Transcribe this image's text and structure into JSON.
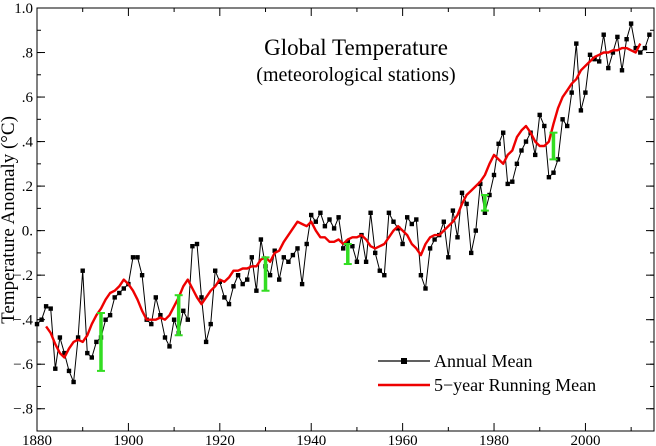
{
  "chart_data": {
    "type": "line",
    "title": "Global Temperature",
    "subtitle": "(meteorological stations)",
    "xlabel": "",
    "ylabel": "Temperature Anomaly (°C)",
    "xlim": [
      1880,
      2015
    ],
    "ylim": [
      -0.9,
      1.0
    ],
    "x_ticks": [
      1880,
      1900,
      1920,
      1940,
      1960,
      1980,
      2000
    ],
    "x_tick_labels": [
      "1880",
      "1900",
      "1920",
      "1940",
      "1960",
      "1980",
      "2000"
    ],
    "y_ticks": [
      1.0,
      0.8,
      0.6,
      0.4,
      0.2,
      0.0,
      -0.2,
      -0.4,
      -0.6,
      -0.8
    ],
    "y_tick_labels": [
      "1.0",
      ".8",
      ".6",
      ".4",
      ".2",
      "0.",
      "−.2",
      "−.4",
      "−.6",
      "−.8"
    ],
    "legend": [
      {
        "label": "Annual Mean",
        "color": "#000000",
        "marker": "square"
      },
      {
        "label": "5−year Running Mean",
        "color": "#ee0000",
        "marker": "none"
      }
    ],
    "legend_position": "bottom-right",
    "series": [
      {
        "name": "Annual Mean",
        "color": "#000000",
        "x": [
          1880,
          1881,
          1882,
          1883,
          1884,
          1885,
          1886,
          1887,
          1888,
          1889,
          1890,
          1891,
          1892,
          1893,
          1894,
          1895,
          1896,
          1897,
          1898,
          1899,
          1900,
          1901,
          1902,
          1903,
          1904,
          1905,
          1906,
          1907,
          1908,
          1909,
          1910,
          1911,
          1912,
          1913,
          1914,
          1915,
          1916,
          1917,
          1918,
          1919,
          1920,
          1921,
          1922,
          1923,
          1924,
          1925,
          1926,
          1927,
          1928,
          1929,
          1930,
          1931,
          1932,
          1933,
          1934,
          1935,
          1936,
          1937,
          1938,
          1939,
          1940,
          1941,
          1942,
          1943,
          1944,
          1945,
          1946,
          1947,
          1948,
          1949,
          1950,
          1951,
          1952,
          1953,
          1954,
          1955,
          1956,
          1957,
          1958,
          1959,
          1960,
          1961,
          1962,
          1963,
          1964,
          1965,
          1966,
          1967,
          1968,
          1969,
          1970,
          1971,
          1972,
          1973,
          1974,
          1975,
          1976,
          1977,
          1978,
          1979,
          1980,
          1981,
          1982,
          1983,
          1984,
          1985,
          1986,
          1987,
          1988,
          1989,
          1990,
          1991,
          1992,
          1993,
          1994,
          1995,
          1996,
          1997,
          1998,
          1999,
          2000,
          2001,
          2002,
          2003,
          2004,
          2005,
          2006,
          2007,
          2008,
          2009,
          2010,
          2011,
          2012,
          2013,
          2014
        ],
        "values": [
          -0.42,
          -0.4,
          -0.34,
          -0.35,
          -0.62,
          -0.48,
          -0.55,
          -0.63,
          -0.68,
          -0.48,
          -0.18,
          -0.55,
          -0.57,
          -0.5,
          -0.48,
          -0.4,
          -0.38,
          -0.3,
          -0.28,
          -0.26,
          -0.24,
          -0.12,
          -0.12,
          -0.2,
          -0.4,
          -0.42,
          -0.3,
          -0.38,
          -0.48,
          -0.52,
          -0.4,
          -0.46,
          -0.36,
          -0.4,
          -0.07,
          -0.06,
          -0.3,
          -0.5,
          -0.42,
          -0.18,
          -0.23,
          -0.3,
          -0.33,
          -0.25,
          -0.2,
          -0.24,
          -0.22,
          -0.12,
          -0.27,
          -0.04,
          -0.16,
          -0.2,
          -0.09,
          -0.22,
          -0.12,
          -0.14,
          -0.11,
          -0.08,
          -0.24,
          -0.06,
          0.07,
          0.04,
          0.08,
          0.02,
          0.05,
          0.01,
          0.06,
          -0.08,
          -0.05,
          -0.07,
          -0.14,
          -0.02,
          -0.14,
          0.08,
          -0.1,
          -0.18,
          -0.2,
          0.08,
          0.04,
          0.01,
          -0.06,
          0.06,
          0.03,
          0.05,
          -0.2,
          -0.26,
          -0.08,
          -0.04,
          -0.02,
          0.04,
          -0.12,
          0.09,
          -0.03,
          0.17,
          0.12,
          -0.1,
          0.0,
          0.21,
          0.08,
          0.16,
          0.25,
          0.39,
          0.44,
          0.21,
          0.22,
          0.3,
          0.36,
          0.4,
          0.44,
          0.34,
          0.52,
          0.47,
          0.24,
          0.26,
          0.32,
          0.5,
          0.47,
          0.62,
          0.84,
          0.54,
          0.62,
          0.79,
          0.77,
          0.76,
          0.88,
          0.73,
          0.8,
          0.87,
          0.72,
          0.86,
          0.93,
          0.82,
          0.8,
          0.82,
          0.88
        ]
      },
      {
        "name": "5−year Running Mean",
        "color": "#ee0000",
        "x": [
          1882,
          1883,
          1884,
          1885,
          1886,
          1887,
          1888,
          1889,
          1890,
          1891,
          1892,
          1893,
          1894,
          1895,
          1896,
          1897,
          1898,
          1899,
          1900,
          1901,
          1902,
          1903,
          1904,
          1905,
          1906,
          1907,
          1908,
          1909,
          1910,
          1911,
          1912,
          1913,
          1914,
          1915,
          1916,
          1917,
          1918,
          1919,
          1920,
          1921,
          1922,
          1923,
          1924,
          1925,
          1926,
          1927,
          1928,
          1929,
          1930,
          1931,
          1932,
          1933,
          1934,
          1935,
          1936,
          1937,
          1938,
          1939,
          1940,
          1941,
          1942,
          1943,
          1944,
          1945,
          1946,
          1947,
          1948,
          1949,
          1950,
          1951,
          1952,
          1953,
          1954,
          1955,
          1956,
          1957,
          1958,
          1959,
          1960,
          1961,
          1962,
          1963,
          1964,
          1965,
          1966,
          1967,
          1968,
          1969,
          1970,
          1971,
          1972,
          1973,
          1974,
          1975,
          1976,
          1977,
          1978,
          1979,
          1980,
          1981,
          1982,
          1983,
          1984,
          1985,
          1986,
          1987,
          1988,
          1989,
          1990,
          1991,
          1992,
          1993,
          1994,
          1995,
          1996,
          1997,
          1998,
          1999,
          2000,
          2001,
          2002,
          2003,
          2004,
          2005,
          2006,
          2007,
          2008,
          2009,
          2010,
          2011,
          2012
        ],
        "values": [
          -0.43,
          -0.46,
          -0.51,
          -0.55,
          -0.57,
          -0.53,
          -0.5,
          -0.49,
          -0.5,
          -0.47,
          -0.42,
          -0.38,
          -0.35,
          -0.31,
          -0.28,
          -0.27,
          -0.25,
          -0.22,
          -0.24,
          -0.27,
          -0.31,
          -0.36,
          -0.4,
          -0.4,
          -0.4,
          -0.39,
          -0.4,
          -0.38,
          -0.34,
          -0.3,
          -0.25,
          -0.22,
          -0.26,
          -0.3,
          -0.33,
          -0.3,
          -0.27,
          -0.25,
          -0.22,
          -0.23,
          -0.21,
          -0.18,
          -0.18,
          -0.17,
          -0.17,
          -0.16,
          -0.16,
          -0.13,
          -0.12,
          -0.14,
          -0.1,
          -0.09,
          -0.05,
          -0.02,
          0.01,
          0.04,
          0.03,
          0.02,
          0.04,
          0.0,
          -0.03,
          -0.03,
          -0.05,
          -0.05,
          -0.04,
          -0.06,
          -0.04,
          -0.03,
          -0.03,
          -0.02,
          -0.04,
          -0.07,
          -0.08,
          -0.07,
          -0.06,
          -0.03,
          0.0,
          0.02,
          0.0,
          -0.02,
          -0.06,
          -0.08,
          -0.11,
          -0.06,
          -0.03,
          -0.02,
          -0.02,
          0.0,
          0.02,
          0.04,
          0.07,
          0.12,
          0.16,
          0.18,
          0.2,
          0.22,
          0.25,
          0.3,
          0.34,
          0.32,
          0.3,
          0.34,
          0.36,
          0.42,
          0.45,
          0.47,
          0.44,
          0.4,
          0.38,
          0.38,
          0.4,
          0.48,
          0.55,
          0.6,
          0.63,
          0.66,
          0.68,
          0.72,
          0.74,
          0.76,
          0.78,
          0.79,
          0.8,
          0.8,
          0.81,
          0.81,
          0.82,
          0.82,
          0.81,
          0.8,
          0.84
        ]
      }
    ],
    "error_bars": [
      {
        "x": 1894,
        "low": -0.63,
        "high": -0.37
      },
      {
        "x": 1911,
        "low": -0.47,
        "high": -0.29
      },
      {
        "x": 1930,
        "low": -0.27,
        "high": -0.12
      },
      {
        "x": 1948,
        "low": -0.15,
        "high": -0.06
      },
      {
        "x": 1978,
        "low": 0.09,
        "high": 0.16
      },
      {
        "x": 1993,
        "low": 0.32,
        "high": 0.44
      }
    ],
    "error_bar_color": "#33dd22"
  }
}
